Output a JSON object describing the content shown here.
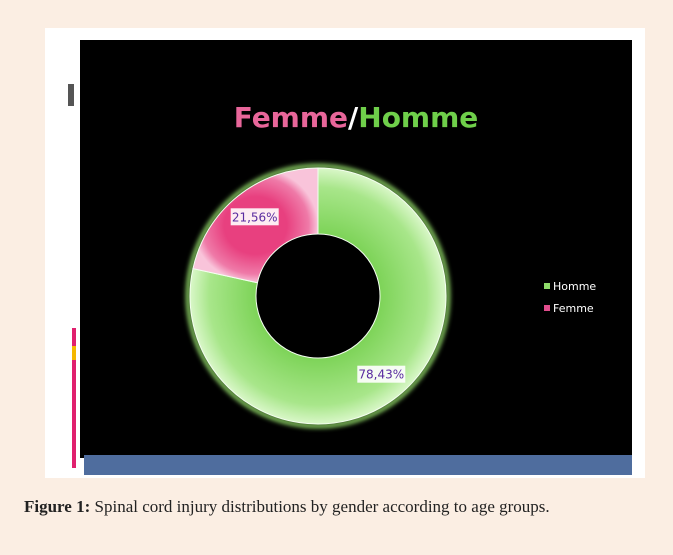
{
  "chart_data": {
    "type": "pie",
    "title": [
      "Femme",
      "/",
      "Homme"
    ],
    "title_colors": [
      "#e8669a",
      "#ffffff",
      "#6fcf4a"
    ],
    "categories": [
      "Homme",
      "Femme"
    ],
    "values": [
      78.43,
      21.56
    ],
    "value_labels": [
      "78,43%",
      "21,56%"
    ],
    "colors": [
      "#8fdc6a",
      "#e04d8c"
    ],
    "legend": "right"
  },
  "caption": {
    "label": "Figure 1:",
    "text": "Spinal cord injury distributions by gender according to age groups."
  }
}
